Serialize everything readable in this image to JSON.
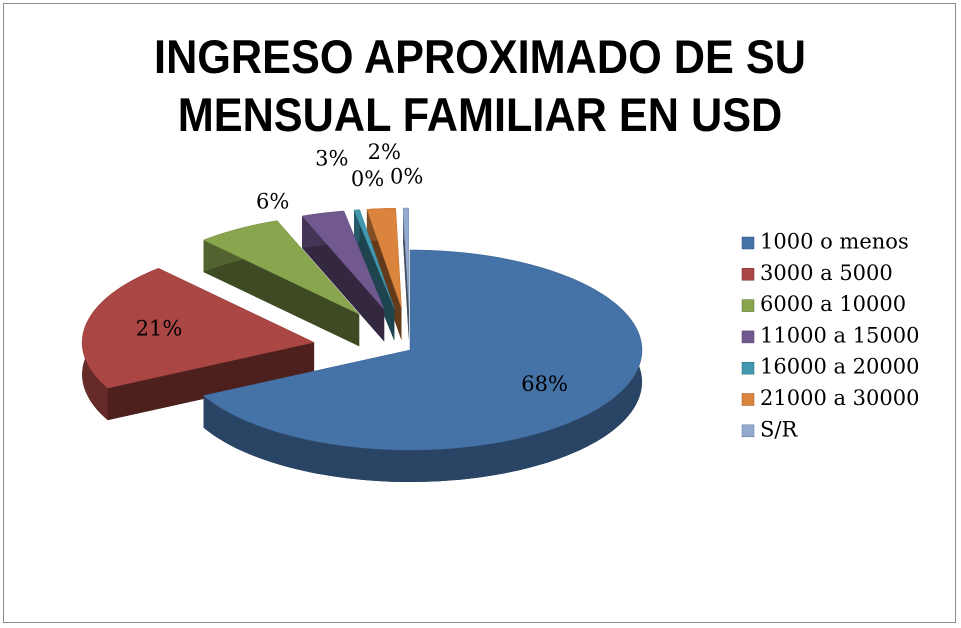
{
  "chart_data": {
    "type": "pie",
    "title": "INGRESO APROXIMADO DE SU MENSUAL FAMILIAR EN USD",
    "categories": [
      "1000 o menos",
      "3000 a 5000",
      "6000 a 10000",
      "11000 a 15000",
      "16000 a 20000",
      "21000 a 30000",
      "S/R"
    ],
    "values": [
      68,
      21,
      6,
      3,
      0.4,
      2,
      0.4
    ],
    "value_labels": [
      "68%",
      "21%",
      "6%",
      "3%",
      "0%",
      "2%",
      "0%"
    ],
    "colors": [
      "#4572a7",
      "#aa4643",
      "#89a54e",
      "#71588f",
      "#4198af",
      "#db843d",
      "#93a9cf"
    ],
    "legend": "right"
  }
}
